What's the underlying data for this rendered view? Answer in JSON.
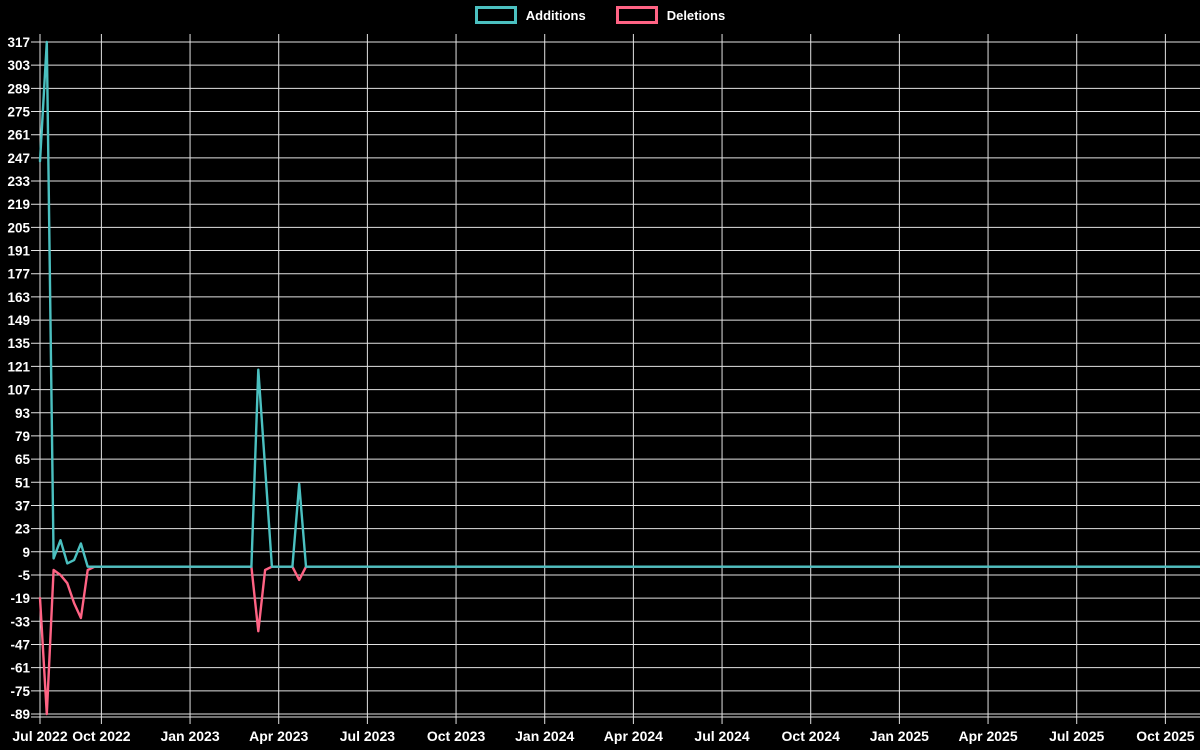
{
  "page": {
    "background_color": "#000000",
    "text_color": "#ffffff",
    "grid_color": "#e2e2e2"
  },
  "legend": {
    "position": "top",
    "items": [
      {
        "label": "Additions",
        "color": "#4BC0C0"
      },
      {
        "label": "Deletions",
        "color": "#FF6384"
      }
    ]
  },
  "chart_data": {
    "type": "line",
    "title": "",
    "xlabel": "",
    "ylabel": "",
    "legend_position": "top",
    "grid": true,
    "background": "#000000",
    "y_axis": {
      "min": -89,
      "max": 317,
      "tick_step": 14,
      "tick_labels": [
        317,
        303,
        289,
        275,
        261,
        247,
        233,
        219,
        205,
        191,
        177,
        163,
        149,
        135,
        121,
        107,
        93,
        79,
        65,
        51,
        37,
        23,
        9,
        -5,
        -19,
        -33,
        -47,
        -61,
        -75,
        -89
      ]
    },
    "x_axis": {
      "unit": "week",
      "week_count": 171,
      "tick_labels": [
        "Jul 2022",
        "Oct 2022",
        "Jan 2023",
        "Apr 2023",
        "Jul 2023",
        "Oct 2023",
        "Jan 2024",
        "Apr 2024",
        "Jul 2024",
        "Oct 2024",
        "Jan 2025",
        "Apr 2025",
        "Jul 2025",
        "Oct 2025"
      ],
      "tick_weeks": [
        0,
        9,
        22,
        35,
        48,
        61,
        74,
        87,
        100,
        113,
        126,
        139,
        152,
        165
      ]
    },
    "series": [
      {
        "name": "Additions",
        "color": "#4BC0C0",
        "baseline_value": 0,
        "nonzero_weekly_values": {
          "0": 245,
          "1": 317,
          "2": 5,
          "3": 16,
          "4": 2,
          "5": 4,
          "6": 14,
          "32": 119,
          "33": 60,
          "38": 50
        }
      },
      {
        "name": "Deletions",
        "color": "#FF6384",
        "baseline_value": 0,
        "nonzero_weekly_values": {
          "0": -19,
          "1": -89,
          "2": -2,
          "3": -5,
          "4": -10,
          "5": -22,
          "6": -31,
          "7": -2,
          "32": -39,
          "33": -2,
          "38": -8
        }
      }
    ]
  }
}
